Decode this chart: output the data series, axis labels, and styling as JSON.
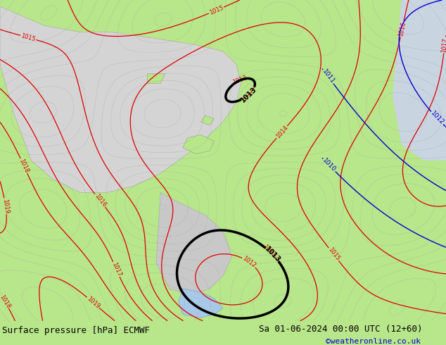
{
  "title_left": "Surface pressure [hPa] ECMWF",
  "title_right": "Sa 01-06-2024 00:00 UTC (12+60)",
  "watermark": "©weatheronline.co.uk",
  "bg_land_color": "#b8e68a",
  "bg_sea_color": "#d4d4d4",
  "footer_bg": "#c8f0a0",
  "figsize": [
    6.34,
    4.9
  ],
  "dpi": 100,
  "footer_text_color": "#000000",
  "watermark_color": "#0000cc",
  "font_size_footer": 9,
  "font_size_watermark": 8
}
